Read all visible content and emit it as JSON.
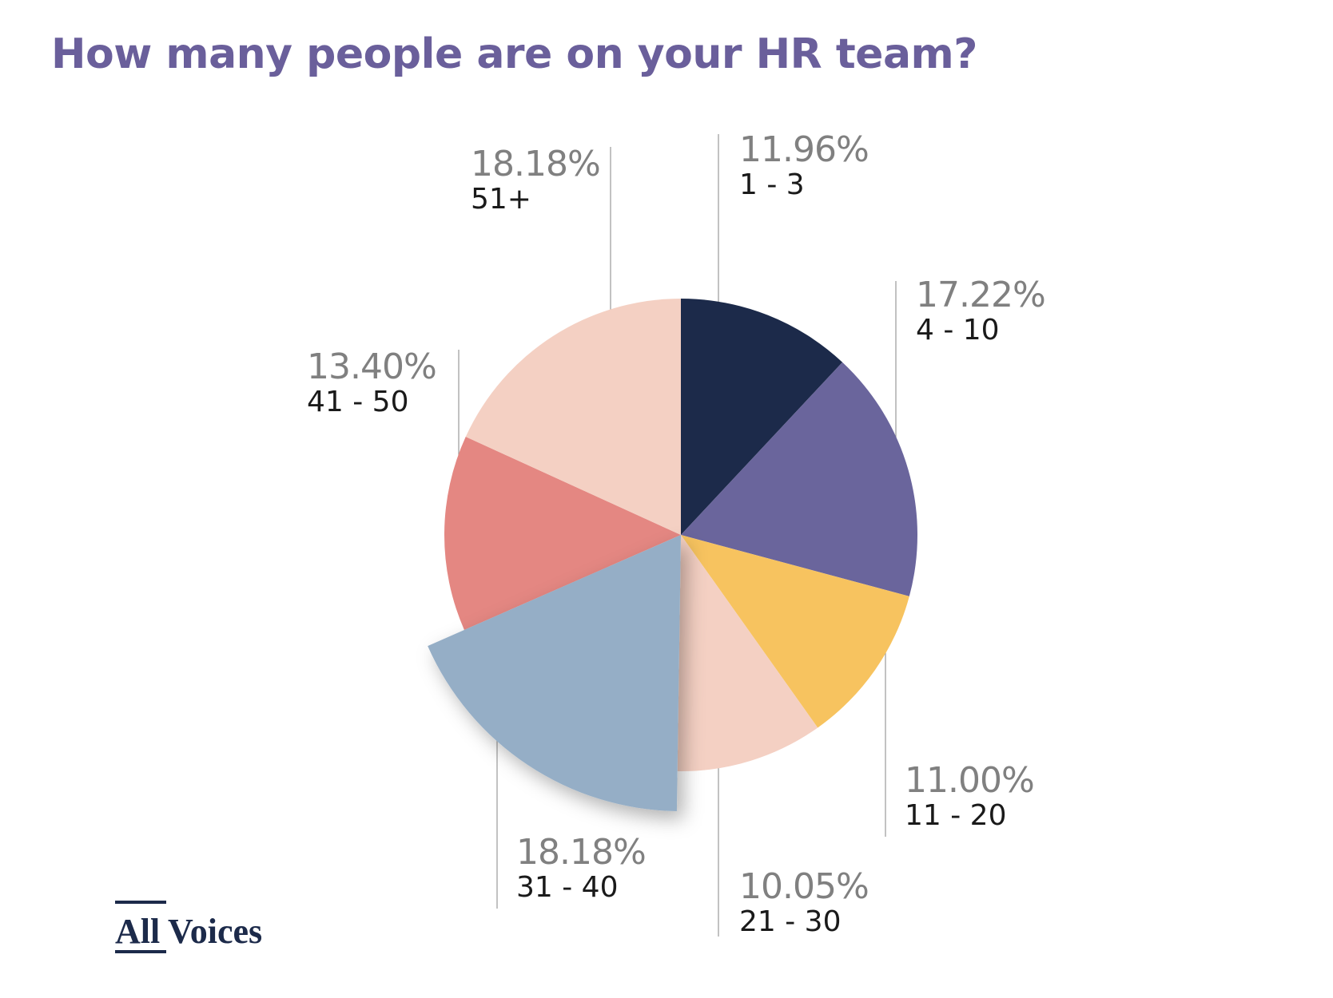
{
  "title": "How many people are on your HR team?",
  "brand": {
    "logo_left": "All",
    "logo_right": "Voices",
    "color": "#1c2a4a"
  },
  "chart_data": {
    "type": "pie",
    "title": "How many people are on your HR team?",
    "start_angle_deg": 0,
    "direction": "clockwise",
    "slices": [
      {
        "label": "1 - 3",
        "value": 11.96,
        "percent_label": "11.96%",
        "color": "#1c2a4a",
        "exploded": false
      },
      {
        "label": "4 - 10",
        "value": 17.22,
        "percent_label": "17.22%",
        "color": "#6a659c",
        "exploded": false
      },
      {
        "label": "11 - 20",
        "value": 11.0,
        "percent_label": "11.00%",
        "color": "#f7c35f",
        "exploded": false
      },
      {
        "label": "21 - 30",
        "value": 10.05,
        "percent_label": "10.05%",
        "color": "#f4d0c3",
        "exploded": false
      },
      {
        "label": "31 - 40",
        "value": 18.18,
        "percent_label": "18.18%",
        "color": "#95aec6",
        "exploded": true
      },
      {
        "label": "41 - 50",
        "value": 13.4,
        "percent_label": "13.40%",
        "color": "#e48782",
        "exploded": false
      },
      {
        "label": "51+",
        "value": 18.18,
        "percent_label": "18.18%",
        "color": "#f4d0c3",
        "exploded": false
      }
    ]
  }
}
